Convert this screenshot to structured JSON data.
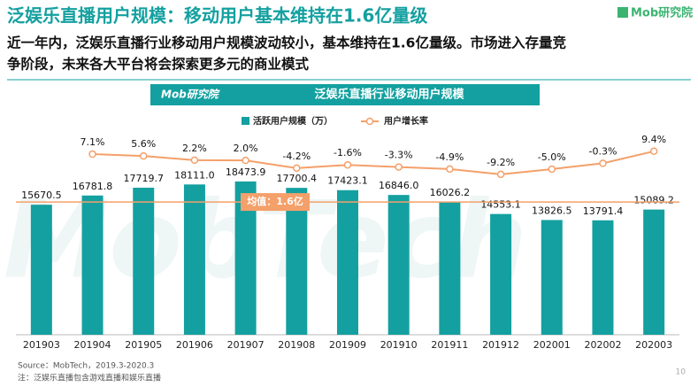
{
  "header": {
    "title": "泛娱乐直播用户规模：移动用户基本维持在1.6亿量级",
    "logo": "Mob研究院",
    "subtitle": [
      "近一年内，泛娱乐直播行业移动用户规模波动较小，基本维持在1.6亿量级。市场进入存量竞",
      "争阶段，未来各大平台将会探索更多元的商业模式"
    ]
  },
  "chart_data": {
    "type": "bar",
    "title": "泛娱乐直播行业移动用户规模",
    "banner_logo": "Mob研究院",
    "watermark": "MobTech",
    "categories": [
      "201903",
      "201904",
      "201905",
      "201906",
      "201907",
      "201908",
      "201909",
      "201910",
      "201911",
      "201912",
      "202001",
      "202002",
      "202003"
    ],
    "series": [
      {
        "name": "活跃用户规模（万）",
        "type": "bar",
        "color": "#14a0a0",
        "values": [
          15670.5,
          16781.8,
          17719.7,
          18111.0,
          18473.9,
          17700.4,
          17423.1,
          16846.0,
          16026.2,
          14553.1,
          13826.5,
          13791.4,
          15089.2
        ],
        "value_labels": [
          "15670.5",
          "16781.8",
          "17719.7",
          "18111.0",
          "18473.9",
          "17700.4",
          "17423.1",
          "16846.0",
          "16026.2",
          "14553.1",
          "13826.5",
          "13791.4",
          "15089.2"
        ]
      },
      {
        "name": "用户增长率",
        "type": "line",
        "axis": "y2",
        "color": "#f4a06a",
        "values": [
          null,
          7.1,
          5.6,
          2.2,
          2.0,
          -4.2,
          -1.6,
          -3.3,
          -4.9,
          -9.2,
          -5.0,
          -0.3,
          9.4
        ],
        "value_labels": [
          null,
          "7.1%",
          "5.6%",
          "2.2%",
          "2.0%",
          "-4.2%",
          "-1.6%",
          "-3.3%",
          "-4.9%",
          "-9.2%",
          "-5.0%",
          "-0.3%",
          "9.4%"
        ]
      }
    ],
    "ylim": [
      0,
      25400
    ],
    "y2lim": [
      -138.6,
      31.4
    ],
    "annotations": [
      {
        "label": "均值：1.6亿",
        "value": 16000
      }
    ]
  },
  "footer": {
    "source": "Source：MobTech，2019.3-2020.3",
    "note": "注：泛娱乐直播包含游戏直播和娱乐直播",
    "page": 10
  }
}
